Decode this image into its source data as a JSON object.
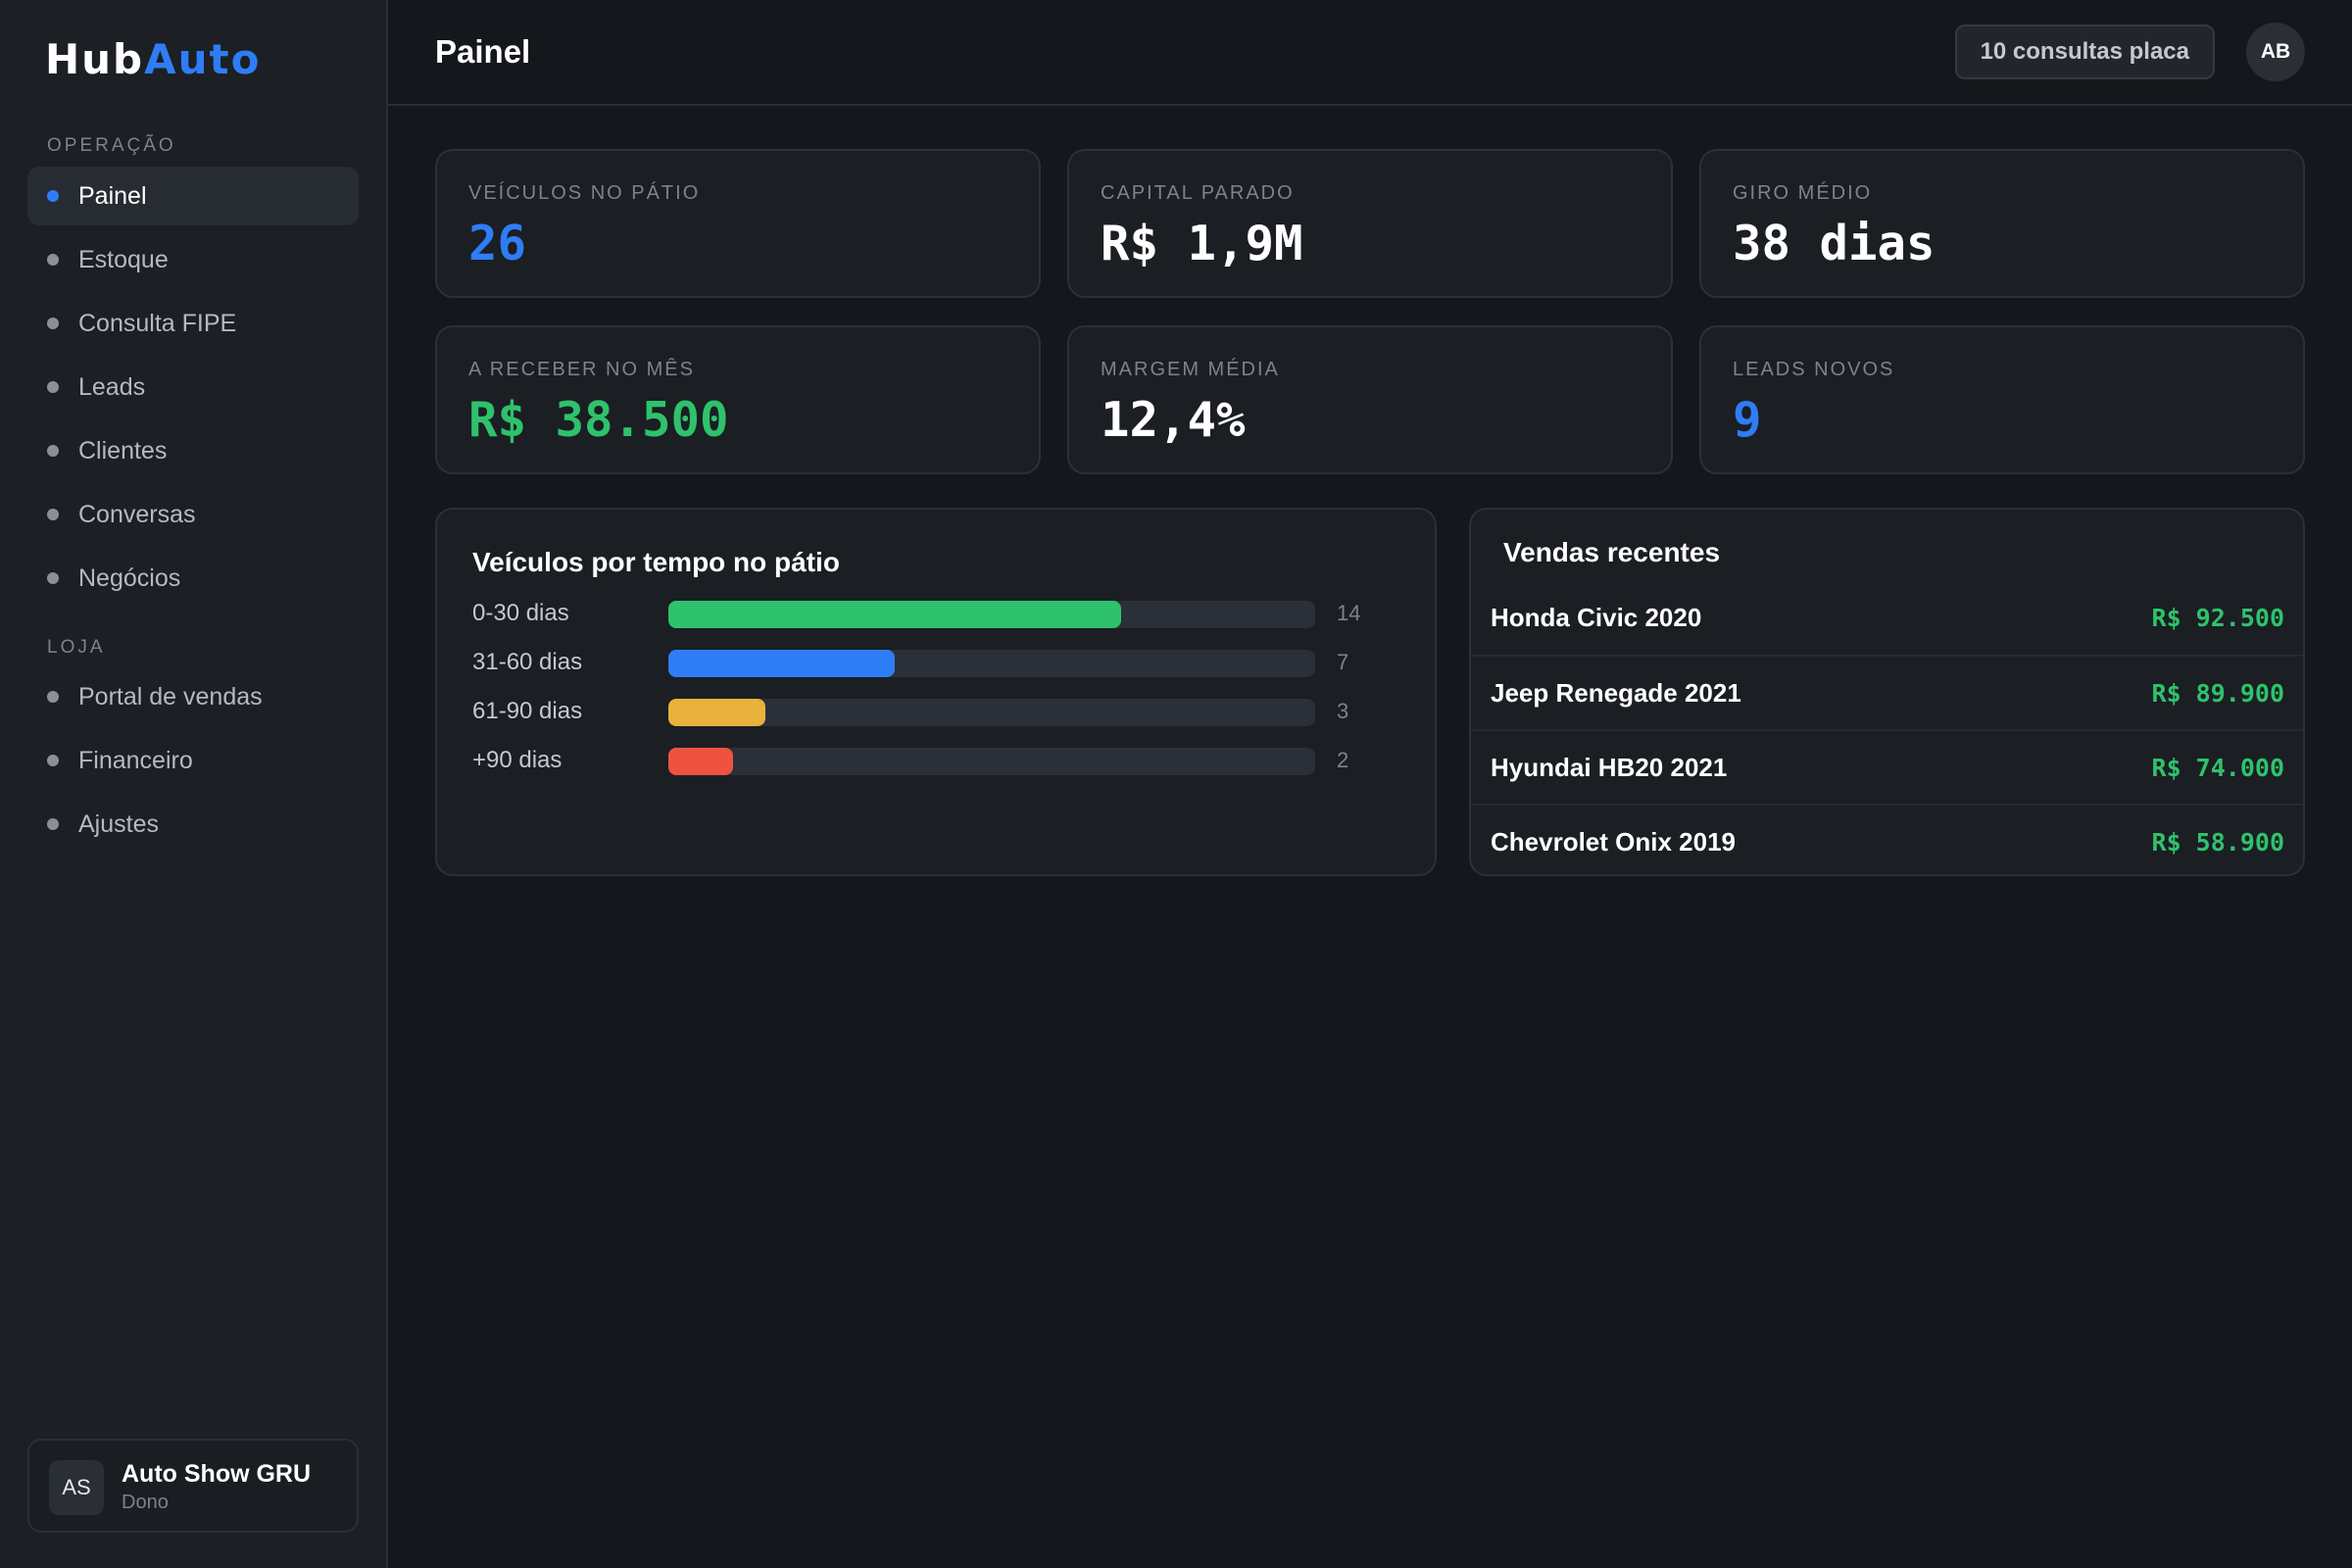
{
  "brand": {
    "hub": "Hub",
    "auto": "Auto"
  },
  "colors": {
    "accent": "#2f7df6",
    "green": "#2ec26c",
    "yellow": "#e9b23c",
    "red": "#ee5340"
  },
  "sidebar": {
    "sections": [
      {
        "title": "OPERAÇÃO",
        "items": [
          {
            "label": "Painel",
            "active": true
          },
          {
            "label": "Estoque"
          },
          {
            "label": "Consulta FIPE"
          },
          {
            "label": "Leads"
          },
          {
            "label": "Clientes"
          },
          {
            "label": "Conversas"
          },
          {
            "label": "Negócios"
          }
        ]
      },
      {
        "title": "LOJA",
        "items": [
          {
            "label": "Portal de vendas"
          },
          {
            "label": "Financeiro"
          },
          {
            "label": "Ajustes"
          }
        ]
      }
    ],
    "store": {
      "initials": "AS",
      "name": "Auto Show GRU",
      "role": "Dono"
    }
  },
  "header": {
    "title": "Painel",
    "quota_label": "10 consultas placa",
    "user_initials": "AB"
  },
  "kpis": [
    {
      "label": "VEÍCULOS NO PÁTIO",
      "value": "26",
      "color": "#2f7df6"
    },
    {
      "label": "CAPITAL PARADO",
      "value": "R$ 1,9M",
      "color": "#ffffff"
    },
    {
      "label": "GIRO MÉDIO",
      "value": "38 dias",
      "color": "#ffffff"
    },
    {
      "label": "A RECEBER NO MÊS",
      "value": "R$ 38.500",
      "color": "#2ec26c"
    },
    {
      "label": "MARGEM MÉDIA",
      "value": "12,4%",
      "color": "#ffffff"
    },
    {
      "label": "LEADS NOVOS",
      "value": "9",
      "color": "#2f7df6"
    }
  ],
  "aging_panel": {
    "title": "Veículos por tempo no pátio"
  },
  "chart_data": {
    "type": "bar",
    "orientation": "horizontal",
    "categories": [
      "0-30 dias",
      "31-60 dias",
      "61-90 dias",
      "+90 dias"
    ],
    "values": [
      14,
      7,
      3,
      2
    ],
    "colors": [
      "#2ec26c",
      "#2f7df6",
      "#e9b23c",
      "#ee5340"
    ],
    "title": "Veículos por tempo no pátio",
    "xlim": [
      0,
      20
    ]
  },
  "sales_panel": {
    "title": "Vendas recentes",
    "rows": [
      {
        "name": "Honda Civic 2020",
        "price": "R$ 92.500"
      },
      {
        "name": "Jeep Renegade 2021",
        "price": "R$ 89.900"
      },
      {
        "name": "Hyundai HB20 2021",
        "price": "R$ 74.000"
      },
      {
        "name": "Chevrolet Onix 2019",
        "price": "R$ 58.900"
      }
    ]
  }
}
